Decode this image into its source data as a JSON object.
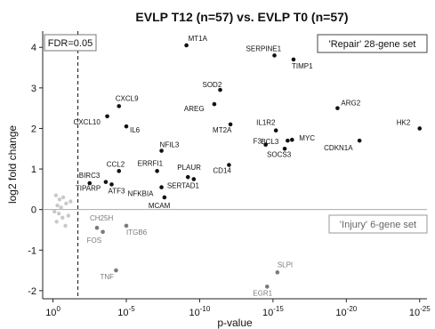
{
  "chart_data": {
    "type": "scatter",
    "title": "EVLP T12 (n=57) vs. EVLP T0 (n=57)",
    "xlabel": "p-value",
    "ylabel": "log2 fold change",
    "x_scale": "log10 p-value (reversed)",
    "x_ticks": [
      {
        "value": 0,
        "label": "10",
        "exp": "0"
      },
      {
        "value": 5,
        "label": "10",
        "exp": "-5"
      },
      {
        "value": 10,
        "label": "10",
        "exp": "-10"
      },
      {
        "value": 15,
        "label": "10",
        "exp": "-15"
      },
      {
        "value": 20,
        "label": "10",
        "exp": "-20"
      },
      {
        "value": 25,
        "label": "10",
        "exp": "-25"
      }
    ],
    "y_ticks": [
      -2,
      -1,
      0,
      1,
      2,
      3,
      4
    ],
    "xlim": [
      -0.7,
      25.5
    ],
    "ylim": [
      -2.2,
      4.4
    ],
    "fdr_line": {
      "x": 1.7,
      "label": "FDR=0.05"
    },
    "legend": {
      "repair": "'Repair' 28-gene set",
      "injury": "'Injury' 6-gene set"
    },
    "colors": {
      "repair": "#111111",
      "injury": "#7a7a7a",
      "other": "#c9c9c9"
    },
    "repair_points": [
      {
        "label": "MT1A",
        "x": 9.1,
        "y": 4.05
      },
      {
        "label": "SERPINE1",
        "x": 15.1,
        "y": 3.8
      },
      {
        "label": "TIMP1",
        "x": 16.4,
        "y": 3.7
      },
      {
        "label": "SOD2",
        "x": 11.4,
        "y": 2.95
      },
      {
        "label": "AREG",
        "x": 11.0,
        "y": 2.6
      },
      {
        "label": "ARG2",
        "x": 19.4,
        "y": 2.5
      },
      {
        "label": "CXCL9",
        "x": 4.5,
        "y": 2.55
      },
      {
        "label": "CXCL10",
        "x": 3.7,
        "y": 2.3
      },
      {
        "label": "IL6",
        "x": 5.0,
        "y": 2.05
      },
      {
        "label": "HK2",
        "x": 25.0,
        "y": 2.0
      },
      {
        "label": "MT2A",
        "x": 12.1,
        "y": 2.1
      },
      {
        "label": "IL1R2",
        "x": 15.2,
        "y": 1.95
      },
      {
        "label": "MYC",
        "x": 16.3,
        "y": 1.72
      },
      {
        "label": "BCL3",
        "x": 16.0,
        "y": 1.7
      },
      {
        "label": "F3",
        "x": 14.5,
        "y": 1.6
      },
      {
        "label": "SOCS3",
        "x": 15.8,
        "y": 1.5
      },
      {
        "label": "CDKN1A",
        "x": 20.9,
        "y": 1.7
      },
      {
        "label": "NFIL3",
        "x": 7.4,
        "y": 1.45
      },
      {
        "label": "CD14",
        "x": 12.0,
        "y": 1.1
      },
      {
        "label": "CCL2",
        "x": 4.5,
        "y": 0.95
      },
      {
        "label": "ERRFI1",
        "x": 7.1,
        "y": 0.95
      },
      {
        "label": "BIRC3",
        "x": 2.5,
        "y": 0.65
      },
      {
        "label": "TIPARP",
        "x": 3.6,
        "y": 0.68
      },
      {
        "label": "ATF3",
        "x": 4.0,
        "y": 0.62
      },
      {
        "label": "NFKBIA",
        "x": 7.4,
        "y": 0.55
      },
      {
        "label": "PLAUR",
        "x": 9.2,
        "y": 0.8
      },
      {
        "label": "SERTAD1",
        "x": 9.6,
        "y": 0.75
      },
      {
        "label": "MCAM",
        "x": 7.6,
        "y": 0.3
      }
    ],
    "injury_points": [
      {
        "label": "CH25H",
        "x": 3.0,
        "y": -0.45
      },
      {
        "label": "FOS",
        "x": 3.4,
        "y": -0.55
      },
      {
        "label": "ITGB6",
        "x": 5.0,
        "y": -0.4
      },
      {
        "label": "TNF",
        "x": 4.3,
        "y": -1.5
      },
      {
        "label": "SLPI",
        "x": 15.3,
        "y": -1.55
      },
      {
        "label": "EGR1",
        "x": 14.6,
        "y": -1.9
      }
    ],
    "other_points": [
      {
        "x": 0.2,
        "y": 0.35
      },
      {
        "x": 0.45,
        "y": 0.25
      },
      {
        "x": 0.7,
        "y": 0.3
      },
      {
        "x": 0.3,
        "y": 0.1
      },
      {
        "x": 0.55,
        "y": 0.05
      },
      {
        "x": 0.9,
        "y": 0.15
      },
      {
        "x": 0.1,
        "y": -0.05
      },
      {
        "x": 0.4,
        "y": -0.1
      },
      {
        "x": 0.65,
        "y": -0.2
      },
      {
        "x": 0.25,
        "y": -0.3
      },
      {
        "x": 0.85,
        "y": -0.4
      },
      {
        "x": 1.2,
        "y": 0.2
      },
      {
        "x": 1.05,
        "y": -0.15
      }
    ]
  }
}
